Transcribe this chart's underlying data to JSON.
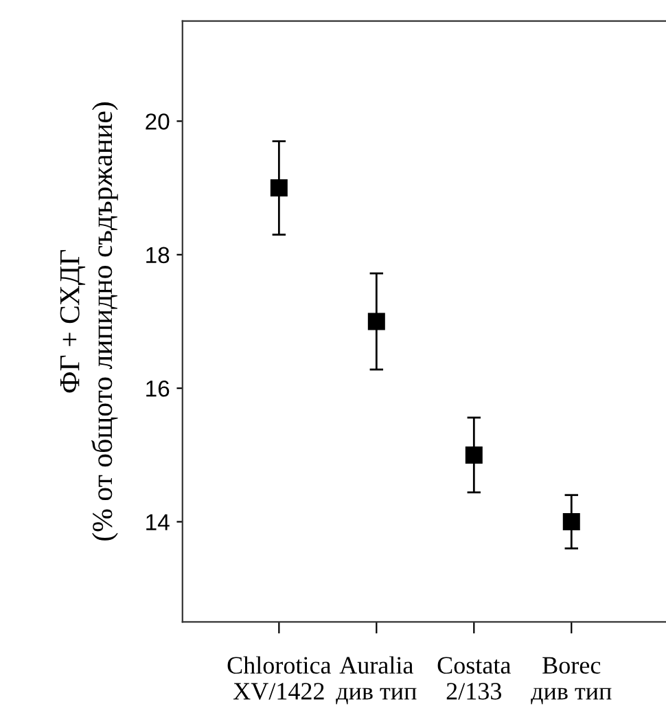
{
  "chart_data": {
    "type": "scatter",
    "ylabel": "ФГ + СХДГ\n(% от общото липидно съдържание)",
    "categories": [
      "Chlorotica\nXV/1422",
      "Auralia\nдив тип",
      "Costata\n2/133",
      "Borec\nдив тип"
    ],
    "series": [
      {
        "color": "#000000",
        "values": [
          19,
          17,
          15,
          14
        ],
        "errors": [
          [
            18.3,
            19.7
          ],
          [
            16.28,
            17.72
          ],
          [
            14.44,
            15.56
          ],
          [
            13.6,
            14.4
          ]
        ]
      }
    ],
    "ylim": [
      12.5,
      21.5
    ],
    "yticks": [
      14,
      16,
      18,
      20
    ],
    "grid": false,
    "legend": false,
    "marker": "square"
  }
}
